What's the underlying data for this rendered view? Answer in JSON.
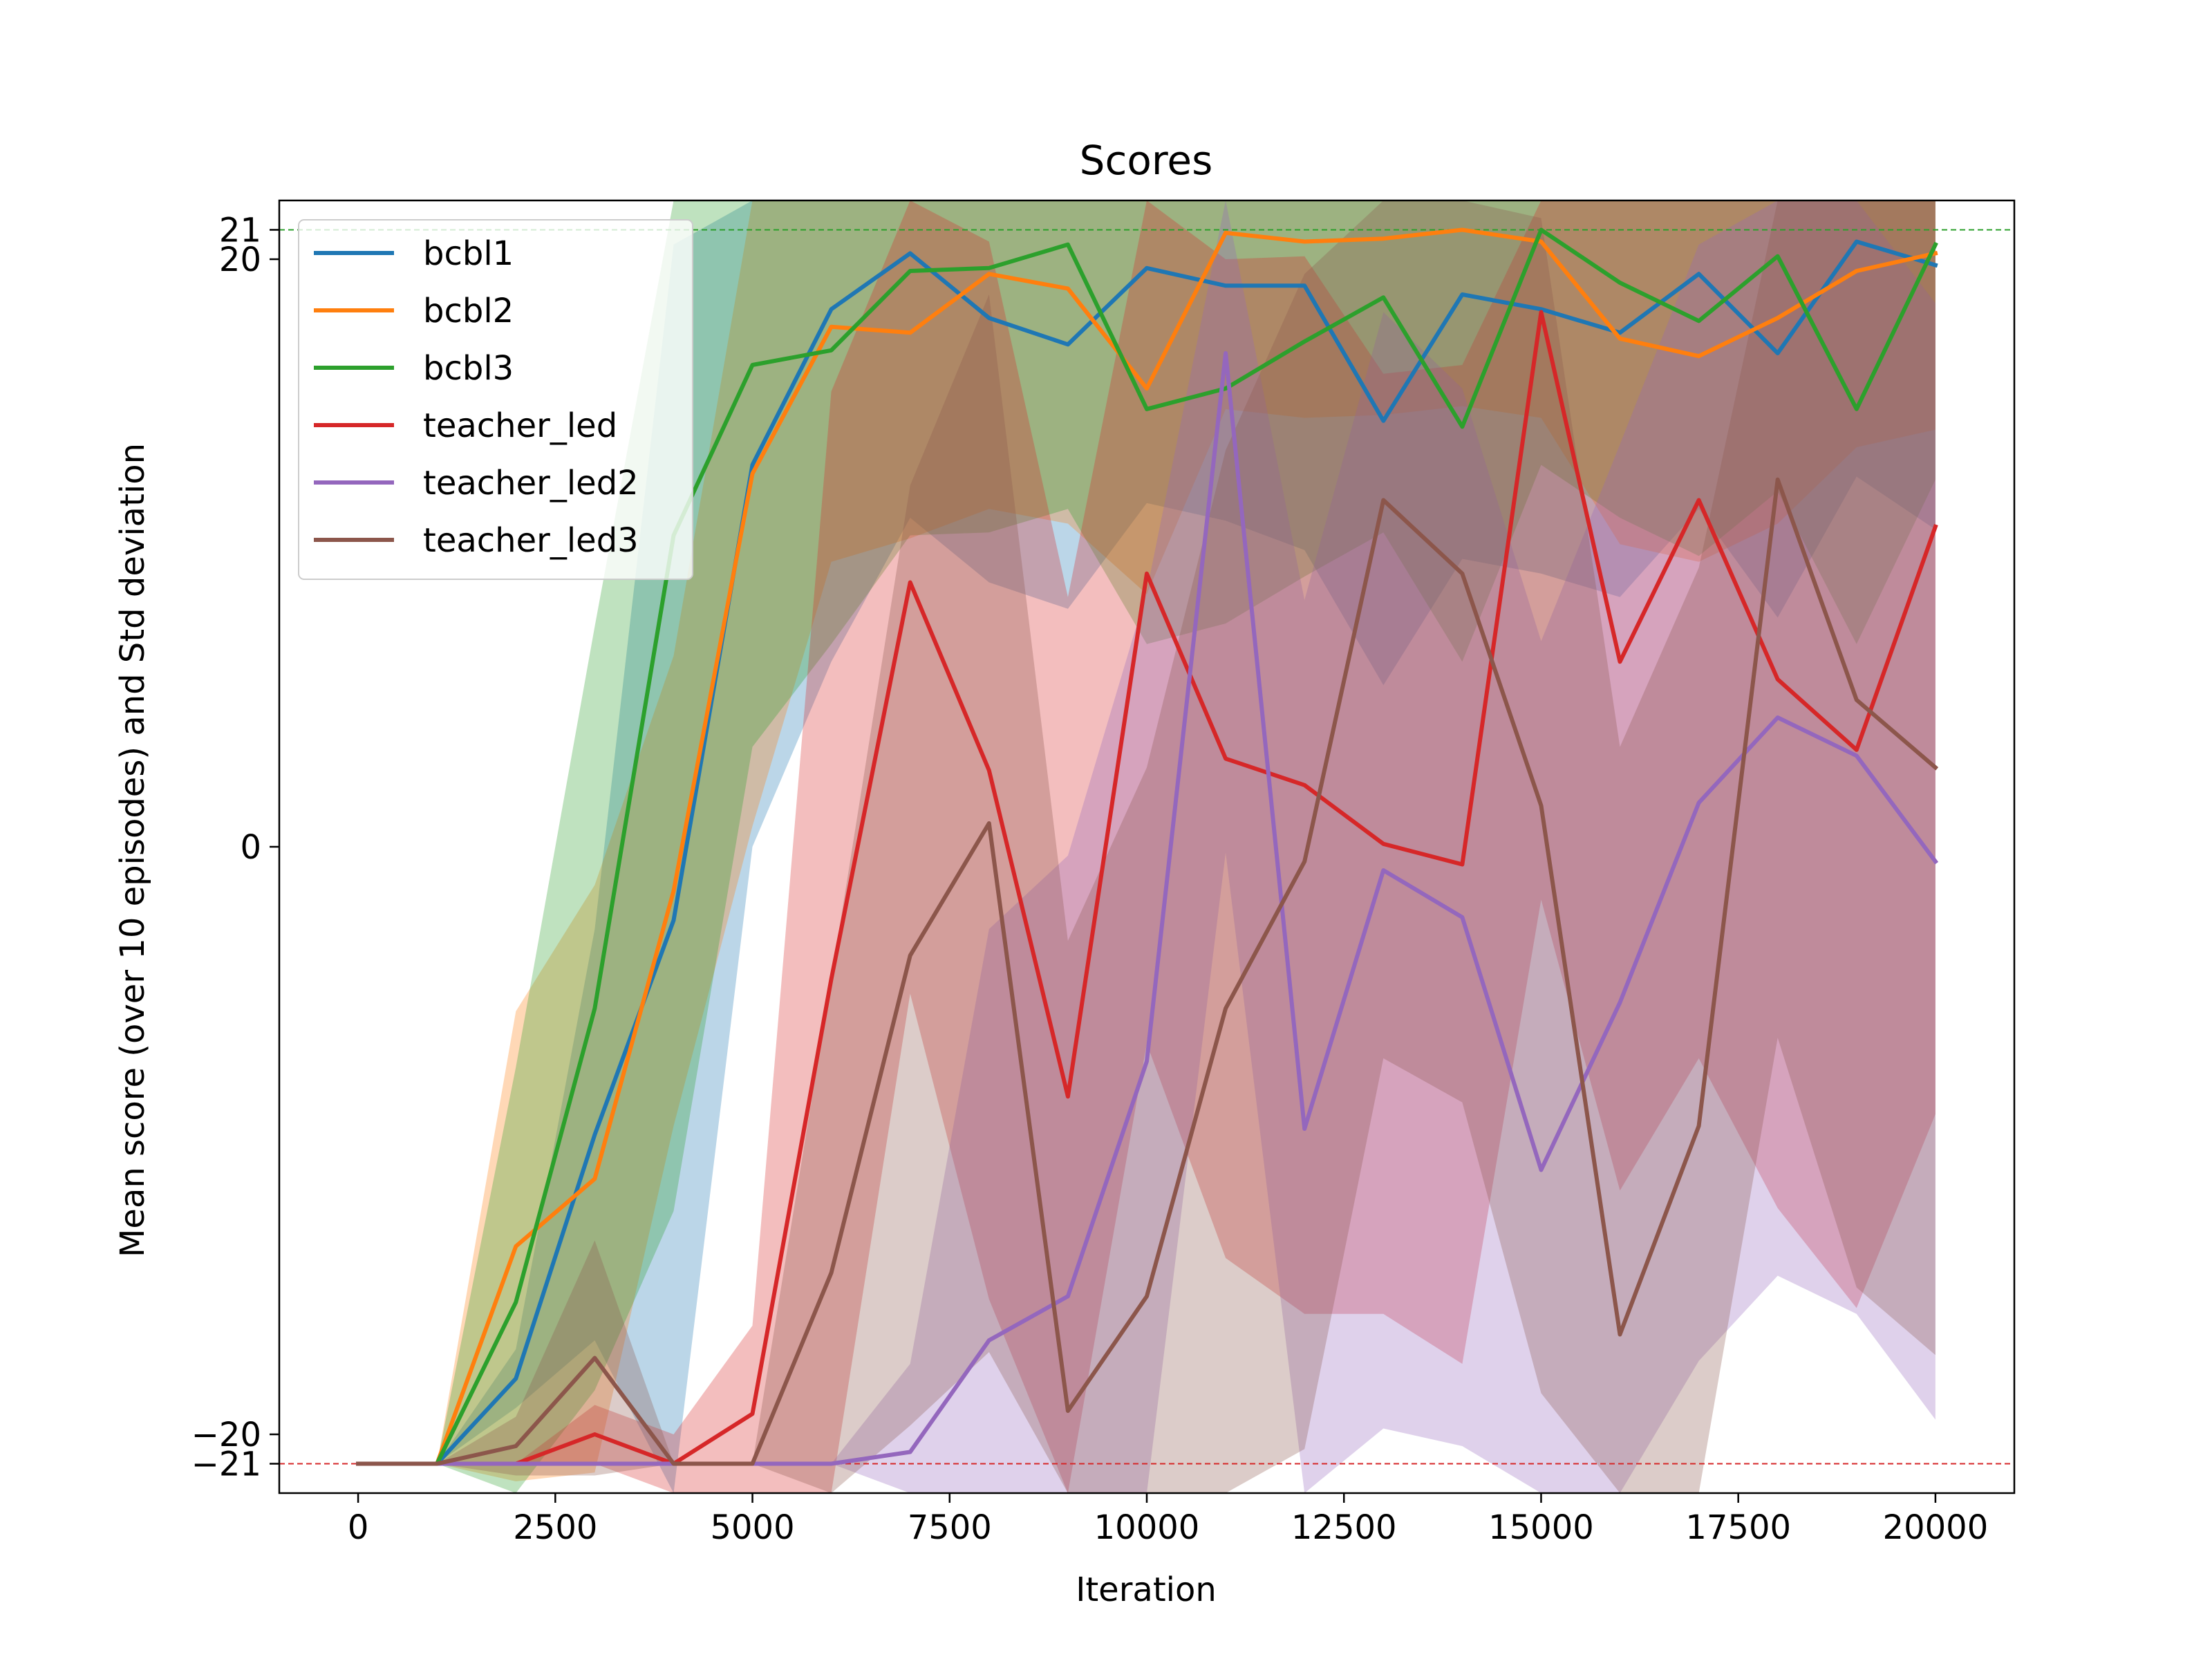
{
  "chart_data": {
    "type": "line",
    "title": "Scores",
    "xlabel": "Iteration",
    "ylabel": "Mean score (over 10 episodes) and Std deviation",
    "xlim": [
      -1000,
      21000
    ],
    "ylim": [
      -22,
      22
    ],
    "xticks": [
      0,
      2500,
      5000,
      7500,
      10000,
      12500,
      15000,
      17500,
      20000
    ],
    "yticks": [
      -21,
      -20,
      0,
      20,
      21
    ],
    "grid": false,
    "legend_position": "top-left",
    "reference_lines": [
      {
        "y": 21,
        "color": "#2ca02c",
        "style": "dashed"
      },
      {
        "y": -21,
        "color": "#d62728",
        "style": "dashed"
      }
    ],
    "x": [
      0,
      1000,
      2000,
      3000,
      4000,
      5000,
      6000,
      7000,
      8000,
      9000,
      10000,
      11000,
      12000,
      13000,
      14000,
      15000,
      16000,
      17000,
      18000,
      19000,
      20000
    ],
    "series": [
      {
        "name": "bcbl1",
        "color": "#1f77b4",
        "values": [
          -21,
          -21,
          -18.1,
          -9.8,
          -2.5,
          13,
          18.3,
          20.2,
          18,
          17.1,
          19.7,
          19.1,
          19.1,
          14.5,
          18.8,
          18.3,
          17.5,
          19.5,
          16.8,
          20.6,
          19.8
        ],
        "std": [
          0,
          0,
          1,
          7,
          23,
          13,
          12,
          9,
          9,
          9,
          8,
          8,
          9,
          9,
          9,
          9,
          9,
          8,
          9,
          8,
          9
        ]
      },
      {
        "name": "bcbl2",
        "color": "#ff7f0e",
        "values": [
          -21,
          -21,
          -13.6,
          -11.3,
          -1.5,
          12.7,
          17.7,
          17.5,
          19.5,
          19,
          15.6,
          20.9,
          20.6,
          20.7,
          21,
          20.6,
          17.3,
          16.7,
          18,
          19.6,
          20.2
        ],
        "std": [
          0,
          0,
          8,
          10,
          8,
          12,
          8,
          7,
          8,
          8,
          7,
          6,
          6,
          6,
          6,
          6,
          7,
          7,
          7,
          6,
          6
        ]
      },
      {
        "name": "bcbl3",
        "color": "#2ca02c",
        "values": [
          -21,
          -21,
          -15.5,
          -5.5,
          10.6,
          16.4,
          16.9,
          19.6,
          19.7,
          20.5,
          14.9,
          15.6,
          17.2,
          18.7,
          14.3,
          21,
          19.2,
          17.9,
          20.1,
          14.9,
          20.5
        ],
        "std": [
          0,
          0,
          8,
          13,
          23,
          13,
          10,
          9,
          9,
          9,
          8,
          8,
          8,
          8,
          8,
          8,
          8,
          8,
          8,
          8,
          8
        ]
      },
      {
        "name": "teacher_led",
        "color": "#d62728",
        "values": [
          -21,
          -21,
          -21,
          -20,
          -21,
          -19.3,
          -4.5,
          9,
          2.6,
          -8.5,
          9.3,
          3,
          2.1,
          0.1,
          -0.6,
          18.2,
          6.3,
          11.8,
          5.7,
          3.3,
          10.9
        ],
        "std": [
          0,
          0,
          0,
          1,
          1,
          3,
          20,
          14,
          18,
          17,
          16,
          17,
          18,
          16,
          17,
          20,
          18,
          19,
          18,
          19,
          20
        ]
      },
      {
        "name": "teacher_led2",
        "color": "#9467bd",
        "values": [
          -21,
          -21,
          -21,
          -21,
          -21,
          -21,
          -21,
          -20.6,
          -16.8,
          -15.3,
          -7.3,
          16.8,
          -9.6,
          -0.8,
          -2.4,
          -11,
          -5.3,
          1.5,
          4.4,
          3.1,
          -0.5
        ],
        "std": [
          0,
          0,
          0,
          0,
          0,
          0,
          0,
          3,
          14,
          15,
          16,
          17,
          18,
          19,
          18,
          18,
          19,
          19,
          19,
          19,
          19
        ]
      },
      {
        "name": "teacher_led3",
        "color": "#8c564b",
        "values": [
          -21,
          -21,
          -20.4,
          -17.4,
          -21,
          -21,
          -14.5,
          -3.7,
          0.8,
          -19.2,
          -15.3,
          -5.5,
          -0.5,
          11.8,
          9.3,
          1.4,
          -16.6,
          -9.5,
          12.5,
          5,
          2.7
        ],
        "std": [
          0,
          0,
          1,
          4,
          0,
          0,
          10,
          16,
          18,
          16,
          18,
          19,
          20,
          19,
          18,
          20,
          20,
          19,
          19,
          20,
          20
        ]
      }
    ]
  }
}
